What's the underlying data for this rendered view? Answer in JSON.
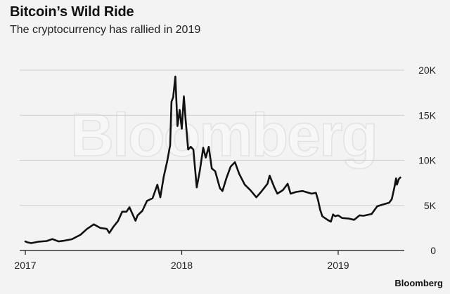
{
  "header": {
    "title": "Bitcoin’s Wild Ride",
    "subtitle": "The cryptocurrency has rallied in 2019"
  },
  "brand": "Bloomberg",
  "watermark": "Bloomberg",
  "colors": {
    "background": "#f3f3f3",
    "line": "#111111",
    "grid": "#cfcfcf"
  },
  "chart_data": {
    "type": "line",
    "title": "Bitcoin’s Wild Ride",
    "subtitle": "The cryptocurrency has rallied in 2019",
    "xlabel": "",
    "ylabel": "",
    "x_ticks": [
      "2017",
      "2018",
      "2019"
    ],
    "y_ticks": [
      "0",
      "5K",
      "10K",
      "15K",
      "20K"
    ],
    "ylim": [
      0,
      20000
    ],
    "xlim": [
      "2017-01-01",
      "2019-05-27"
    ],
    "grid": true,
    "y_axis_side": "right",
    "series": [
      {
        "points": [
          [
            "2017-01-01",
            1000
          ],
          [
            "2017-01-06",
            900
          ],
          [
            "2017-01-15",
            820
          ],
          [
            "2017-02-01",
            980
          ],
          [
            "2017-02-20",
            1050
          ],
          [
            "2017-03-05",
            1270
          ],
          [
            "2017-03-20",
            1000
          ],
          [
            "2017-04-01",
            1080
          ],
          [
            "2017-04-20",
            1250
          ],
          [
            "2017-05-10",
            1750
          ],
          [
            "2017-05-25",
            2400
          ],
          [
            "2017-06-10",
            2900
          ],
          [
            "2017-06-25",
            2500
          ],
          [
            "2017-07-10",
            2400
          ],
          [
            "2017-07-16",
            1950
          ],
          [
            "2017-07-25",
            2600
          ],
          [
            "2017-08-05",
            3250
          ],
          [
            "2017-08-15",
            4300
          ],
          [
            "2017-08-25",
            4300
          ],
          [
            "2017-09-01",
            4800
          ],
          [
            "2017-09-15",
            3300
          ],
          [
            "2017-09-20",
            3900
          ],
          [
            "2017-10-01",
            4400
          ],
          [
            "2017-10-12",
            5500
          ],
          [
            "2017-10-25",
            5800
          ],
          [
            "2017-11-05",
            7300
          ],
          [
            "2017-11-12",
            5900
          ],
          [
            "2017-11-20",
            8200
          ],
          [
            "2017-11-28",
            9900
          ],
          [
            "2017-12-05",
            11700
          ],
          [
            "2017-12-08",
            16500
          ],
          [
            "2017-12-12",
            17000
          ],
          [
            "2017-12-17",
            19300
          ],
          [
            "2017-12-22",
            13800
          ],
          [
            "2017-12-27",
            15600
          ],
          [
            "2018-01-01",
            13500
          ],
          [
            "2018-01-06",
            17100
          ],
          [
            "2018-01-10",
            14500
          ],
          [
            "2018-01-16",
            11200
          ],
          [
            "2018-01-22",
            11500
          ],
          [
            "2018-01-28",
            11200
          ],
          [
            "2018-02-05",
            7000
          ],
          [
            "2018-02-12",
            8800
          ],
          [
            "2018-02-20",
            11400
          ],
          [
            "2018-02-26",
            10300
          ],
          [
            "2018-03-05",
            11500
          ],
          [
            "2018-03-12",
            9100
          ],
          [
            "2018-03-20",
            8800
          ],
          [
            "2018-03-31",
            6900
          ],
          [
            "2018-04-06",
            6600
          ],
          [
            "2018-04-15",
            8000
          ],
          [
            "2018-04-25",
            9300
          ],
          [
            "2018-05-05",
            9800
          ],
          [
            "2018-05-15",
            8500
          ],
          [
            "2018-05-28",
            7300
          ],
          [
            "2018-06-10",
            6700
          ],
          [
            "2018-06-24",
            5900
          ],
          [
            "2018-07-05",
            6500
          ],
          [
            "2018-07-20",
            7400
          ],
          [
            "2018-07-25",
            8300
          ],
          [
            "2018-08-05",
            7000
          ],
          [
            "2018-08-12",
            6300
          ],
          [
            "2018-08-25",
            6700
          ],
          [
            "2018-09-05",
            7400
          ],
          [
            "2018-09-12",
            6300
          ],
          [
            "2018-09-25",
            6500
          ],
          [
            "2018-10-10",
            6600
          ],
          [
            "2018-10-31",
            6300
          ],
          [
            "2018-11-10",
            6400
          ],
          [
            "2018-11-15",
            5600
          ],
          [
            "2018-11-20",
            4500
          ],
          [
            "2018-11-25",
            3800
          ],
          [
            "2018-12-07",
            3400
          ],
          [
            "2018-12-15",
            3200
          ],
          [
            "2018-12-20",
            4000
          ],
          [
            "2018-12-25",
            3800
          ],
          [
            "2019-01-01",
            3900
          ],
          [
            "2019-01-10",
            3600
          ],
          [
            "2019-01-25",
            3550
          ],
          [
            "2019-02-07",
            3400
          ],
          [
            "2019-02-20",
            3900
          ],
          [
            "2019-03-01",
            3850
          ],
          [
            "2019-03-20",
            4050
          ],
          [
            "2019-04-02",
            4900
          ],
          [
            "2019-04-15",
            5100
          ],
          [
            "2019-04-30",
            5300
          ],
          [
            "2019-05-06",
            5700
          ],
          [
            "2019-05-12",
            7000
          ],
          [
            "2019-05-16",
            8000
          ],
          [
            "2019-05-18",
            7300
          ],
          [
            "2019-05-22",
            7900
          ],
          [
            "2019-05-26",
            8100
          ]
        ]
      }
    ]
  }
}
